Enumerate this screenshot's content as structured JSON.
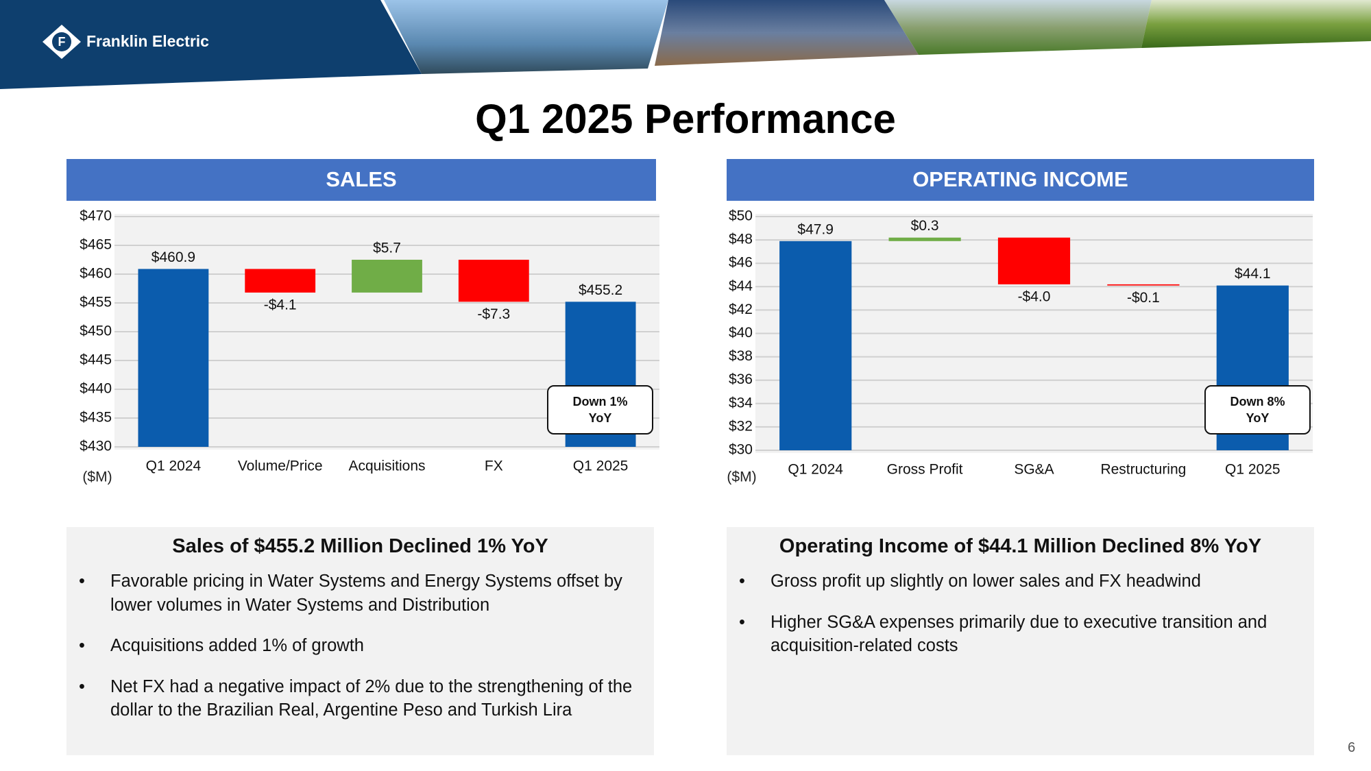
{
  "brand": "Franklin Electric",
  "title": "Q1 2025 Performance",
  "page_number": "6",
  "chart_data": [
    {
      "type": "waterfall",
      "title": "SALES",
      "y_axis_label": "($M)",
      "categories": [
        "Q1 2024",
        "Volume/Price",
        "Acquisitions",
        "FX",
        "Q1 2025"
      ],
      "values": [
        460.9,
        -4.1,
        5.7,
        -7.3,
        455.2
      ],
      "value_labels": [
        "$460.9",
        "-$4.1",
        "$5.7",
        "-$7.3",
        "$455.2"
      ],
      "measures": [
        "total",
        "relative",
        "relative",
        "relative",
        "total"
      ],
      "colors": {
        "total": "#0b5cad",
        "increase": "#70ad47",
        "decrease": "#ff0000"
      },
      "ylim": [
        430,
        470
      ],
      "yticks": [
        {
          "value": 430,
          "label": "$430"
        },
        {
          "value": 435,
          "label": "$435"
        },
        {
          "value": 440,
          "label": "$440"
        },
        {
          "value": 445,
          "label": "$445"
        },
        {
          "value": 450,
          "label": "$450"
        },
        {
          "value": 455,
          "label": "$455"
        },
        {
          "value": 460,
          "label": "$460"
        },
        {
          "value": 465,
          "label": "$465"
        },
        {
          "value": 470,
          "label": "$470"
        }
      ],
      "grid": true,
      "annotation": "Down 1% YoY"
    },
    {
      "type": "waterfall",
      "title": "OPERATING INCOME",
      "y_axis_label": "($M)",
      "categories": [
        "Q1 2024",
        "Gross Profit",
        "SG&A",
        "Restructuring",
        "Q1 2025"
      ],
      "values": [
        47.9,
        0.3,
        -4.0,
        -0.1,
        44.1
      ],
      "value_labels": [
        "$47.9",
        "$0.3",
        "-$4.0",
        "-$0.1",
        "$44.1"
      ],
      "measures": [
        "total",
        "relative",
        "relative",
        "relative",
        "total"
      ],
      "colors": {
        "total": "#0b5cad",
        "increase": "#70ad47",
        "decrease": "#ff0000"
      },
      "ylim": [
        30,
        50
      ],
      "yticks": [
        {
          "value": 30,
          "label": "$30"
        },
        {
          "value": 32,
          "label": "$32"
        },
        {
          "value": 34,
          "label": "$34"
        },
        {
          "value": 36,
          "label": "$36"
        },
        {
          "value": 38,
          "label": "$38"
        },
        {
          "value": 40,
          "label": "$40"
        },
        {
          "value": 42,
          "label": "$42"
        },
        {
          "value": 44,
          "label": "$44"
        },
        {
          "value": 46,
          "label": "$46"
        },
        {
          "value": 48,
          "label": "$48"
        },
        {
          "value": 50,
          "label": "$50"
        }
      ],
      "grid": true,
      "annotation": "Down 8% YoY"
    }
  ],
  "summaries": [
    {
      "heading": "Sales of $455.2 Million Declined 1% YoY",
      "bullets": [
        "Favorable pricing in Water Systems and Energy Systems offset by lower volumes in Water Systems and Distribution",
        "Acquisitions added 1% of growth",
        "Net FX had a negative impact of 2% due to the strengthening of the dollar to the Brazilian Real, Argentine Peso and Turkish Lira"
      ]
    },
    {
      "heading": "Operating Income of $44.1 Million Declined 8% YoY",
      "bullets": [
        "Gross profit up slightly on lower sales and FX headwind",
        "Higher SG&A expenses primarily due to executive transition and acquisition-related costs"
      ]
    }
  ]
}
